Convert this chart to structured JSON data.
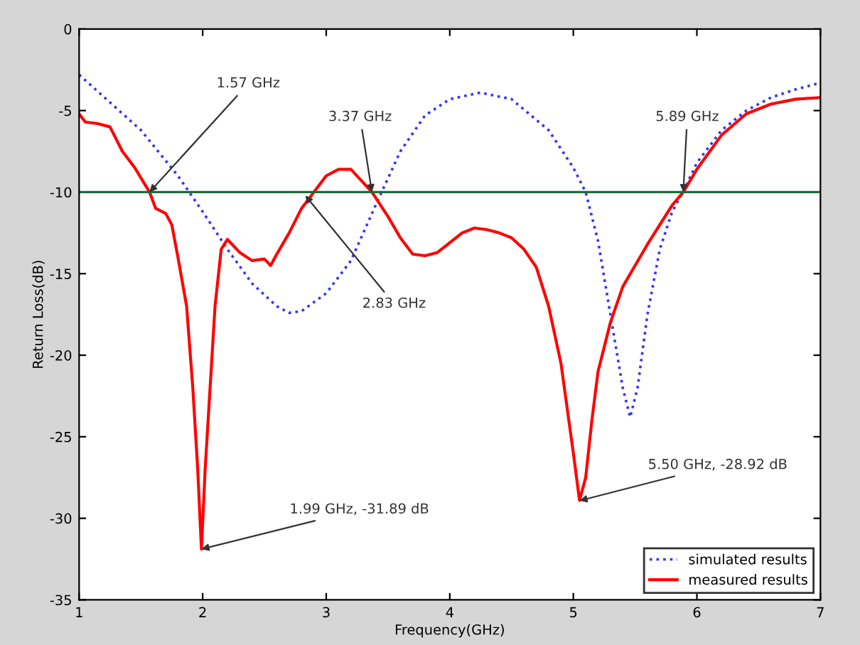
{
  "chart_data": {
    "type": "line",
    "xlabel": "Frequency(GHz)",
    "ylabel": "Return Loss(dB)",
    "xlim": [
      1,
      7
    ],
    "ylim": [
      -35,
      0
    ],
    "xticks": [
      1,
      2,
      3,
      4,
      5,
      6,
      7
    ],
    "yticks": [
      -35,
      -30,
      -25,
      -20,
      -15,
      -10,
      -5,
      0
    ],
    "grid": false,
    "legend": "bottom right",
    "series": [
      {
        "name": "simulated results",
        "color": "#3333ff",
        "line_style": "dotted",
        "x": [
          1,
          1.5,
          1.8,
          2.0,
          2.2,
          2.4,
          2.6,
          2.7,
          2.8,
          3.0,
          3.2,
          3.4,
          3.6,
          3.8,
          4.0,
          4.25,
          4.5,
          4.8,
          5.0,
          5.1,
          5.2,
          5.3,
          5.4,
          5.46,
          5.52,
          5.6,
          5.7,
          5.8,
          5.9,
          6.0,
          6.2,
          6.4,
          6.6,
          6.8,
          7.0
        ],
        "values": [
          -2.8,
          -6.2,
          -9,
          -11.2,
          -13.5,
          -15.6,
          -17,
          -17.4,
          -17.3,
          -16.2,
          -14.2,
          -10.8,
          -7.5,
          -5.3,
          -4.3,
          -3.9,
          -4.3,
          -6.2,
          -8.5,
          -10,
          -13,
          -17.5,
          -22,
          -23.8,
          -22,
          -17.5,
          -13.5,
          -11.2,
          -9.8,
          -8.2,
          -6.2,
          -5,
          -4.2,
          -3.7,
          -3.3
        ]
      },
      {
        "name": "measured results",
        "color": "#ff0000",
        "line_style": "solid",
        "x": [
          1.0,
          1.05,
          1.15,
          1.25,
          1.35,
          1.45,
          1.57,
          1.62,
          1.7,
          1.75,
          1.8,
          1.87,
          1.92,
          1.96,
          1.99,
          2.02,
          2.06,
          2.1,
          2.15,
          2.2,
          2.3,
          2.4,
          2.5,
          2.55,
          2.6,
          2.7,
          2.8,
          2.9,
          3.0,
          3.1,
          3.2,
          3.37,
          3.5,
          3.6,
          3.7,
          3.8,
          3.9,
          4.0,
          4.1,
          4.2,
          4.3,
          4.4,
          4.5,
          4.6,
          4.7,
          4.8,
          4.9,
          5.0,
          5.05,
          5.1,
          5.15,
          5.2,
          5.3,
          5.4,
          5.5,
          5.6,
          5.7,
          5.8,
          5.89,
          6.0,
          6.2,
          6.4,
          6.6,
          6.8,
          7.0
        ],
        "values": [
          -5.2,
          -5.7,
          -5.8,
          -6,
          -7.5,
          -8.5,
          -10,
          -11,
          -11.3,
          -12,
          -14,
          -17,
          -22,
          -27,
          -31.9,
          -27,
          -22,
          -17,
          -13.5,
          -12.9,
          -13.7,
          -14.2,
          -14.1,
          -14.5,
          -13.8,
          -12.5,
          -11,
          -10,
          -9,
          -8.6,
          -8.6,
          -10,
          -11.5,
          -12.8,
          -13.8,
          -13.9,
          -13.7,
          -13.1,
          -12.5,
          -12.2,
          -12.3,
          -12.5,
          -12.8,
          -13.5,
          -14.6,
          -17,
          -20.5,
          -26,
          -28.9,
          -27.5,
          -24,
          -21,
          -18,
          -15.8,
          -14.5,
          -13.2,
          -12,
          -10.8,
          -10,
          -8.6,
          -6.5,
          -5.2,
          -4.6,
          -4.3,
          -4.2
        ]
      }
    ],
    "ref_lines": [
      {
        "axis": "y",
        "value": -10,
        "color": "#1f6b3a",
        "line_style": "solid"
      }
    ],
    "annotations": [
      {
        "text": "1.57 GHz",
        "x": 1.57,
        "y": -10
      },
      {
        "text": "3.37 GHz",
        "x": 3.37,
        "y": -10
      },
      {
        "text": "2.83 GHz",
        "x": 2.83,
        "y": -10.2
      },
      {
        "text": "5.89 GHz",
        "x": 5.89,
        "y": -10
      },
      {
        "text": "1.99 GHz, -31.89 dB",
        "x": 1.99,
        "y": -31.89
      },
      {
        "text": "5.50 GHz, -28.92 dB",
        "x": 5.05,
        "y": -28.92
      }
    ]
  }
}
